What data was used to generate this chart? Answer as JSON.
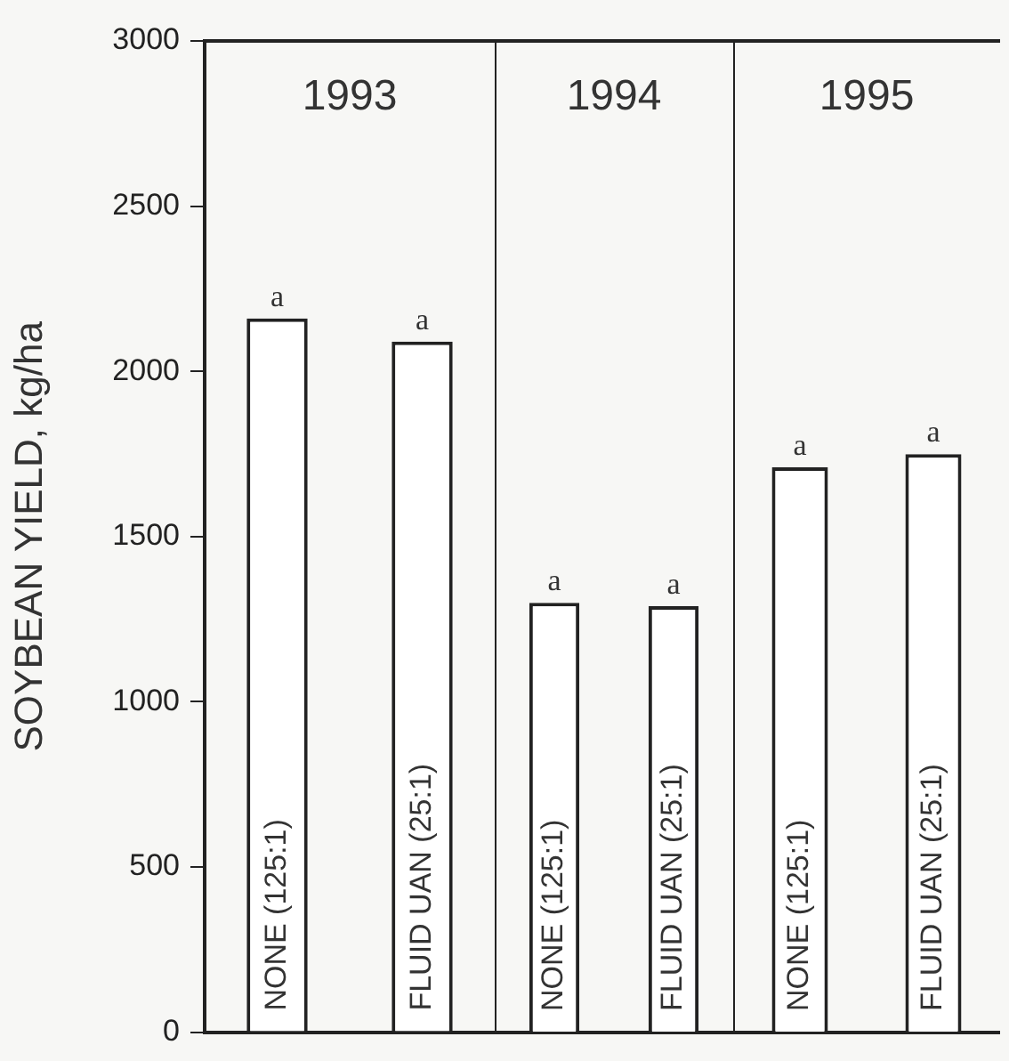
{
  "chart_data": [
    {
      "type": "bar",
      "title": "1993",
      "ylabel": "SOYBEAN YIELD, kg/ha",
      "categories": [
        "NONE (125:1)",
        "FLUID UAN (25:1)"
      ],
      "values": [
        2160,
        2090
      ],
      "value_labels": [
        "a",
        "a"
      ],
      "color": "#ffffff",
      "ylim": [
        0,
        3000
      ],
      "yticks": [
        0,
        500,
        1000,
        1500,
        2000,
        2500,
        3000
      ],
      "grid": false,
      "legend": false
    },
    {
      "type": "bar",
      "title": "1994",
      "categories": [
        "NONE (125:1)",
        "FLUID UAN (25:1)"
      ],
      "values": [
        1300,
        1290
      ],
      "value_labels": [
        "a",
        "a"
      ],
      "color": "#ffffff",
      "ylim": [
        0,
        3000
      ],
      "yticks": [
        0,
        500,
        1000,
        1500,
        2000,
        2500,
        3000
      ],
      "tick_labels": "x",
      "grid": false,
      "legend": false
    },
    {
      "type": "bar",
      "title": "1995",
      "categories": [
        "NONE (125:1)",
        "FLUID UAN (25:1)"
      ],
      "values": [
        1710,
        1750
      ],
      "value_labels": [
        "a",
        "a"
      ],
      "color": "#ffffff",
      "ylim": [
        0,
        3000
      ],
      "yticks": [
        0,
        500,
        1000,
        1500,
        2000,
        2500,
        3000
      ],
      "tick_labels": "x",
      "grid": false,
      "legend": false
    }
  ]
}
